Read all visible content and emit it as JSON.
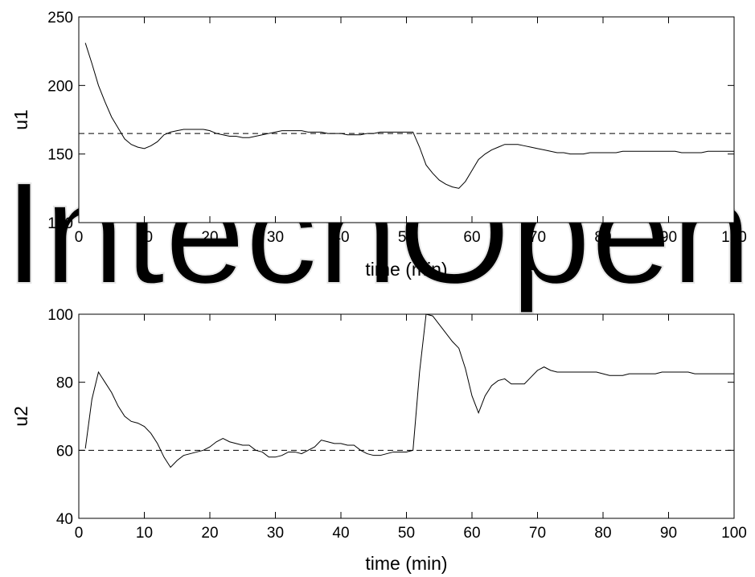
{
  "watermark": {
    "text": "IntechOpen"
  },
  "chart_data": [
    {
      "type": "line",
      "title": "",
      "xlabel": "time (min)",
      "ylabel": "u1",
      "xlim": [
        0,
        100
      ],
      "ylim": [
        100,
        250
      ],
      "xticks": [
        0,
        10,
        20,
        30,
        40,
        50,
        60,
        70,
        80,
        90,
        100
      ],
      "yticks": [
        100,
        150,
        200,
        250
      ],
      "grid": false,
      "series": [
        {
          "style": "solid",
          "color": "#000000",
          "x": [
            1,
            2,
            3,
            4,
            5,
            6,
            7,
            8,
            9,
            10,
            11,
            12,
            13,
            14,
            15,
            16,
            17,
            18,
            19,
            20,
            21,
            22,
            23,
            24,
            25,
            26,
            27,
            28,
            29,
            30,
            31,
            32,
            33,
            34,
            35,
            36,
            37,
            38,
            39,
            40,
            41,
            42,
            43,
            44,
            45,
            46,
            47,
            48,
            49,
            50,
            51,
            52,
            53,
            54,
            55,
            56,
            57,
            58,
            59,
            60,
            61,
            62,
            63,
            64,
            65,
            66,
            67,
            68,
            69,
            70,
            71,
            72,
            73,
            74,
            75,
            76,
            77,
            78,
            79,
            80,
            81,
            82,
            83,
            84,
            85,
            86,
            87,
            88,
            89,
            90,
            91,
            92,
            93,
            94,
            95,
            96,
            97,
            98,
            99,
            100
          ],
          "y": [
            231,
            216,
            200,
            188,
            177,
            169,
            161,
            157,
            155,
            154,
            156,
            159,
            164,
            166,
            167,
            168,
            168,
            168,
            168,
            167,
            165,
            164,
            163,
            163,
            162,
            162,
            163,
            164,
            165,
            166,
            167,
            167,
            167,
            167,
            166,
            166,
            166,
            165,
            165,
            165,
            164,
            164,
            164,
            165,
            165,
            166,
            166,
            166,
            166,
            166,
            166,
            155,
            142,
            136,
            131,
            128,
            126,
            125,
            130,
            138,
            146,
            150,
            153,
            155,
            157,
            157,
            157,
            156,
            155,
            154,
            153,
            152,
            151,
            151,
            150,
            150,
            150,
            151,
            151,
            151,
            151,
            151,
            152,
            152,
            152,
            152,
            152,
            152,
            152,
            152,
            152,
            151,
            151,
            151,
            151,
            152,
            152,
            152,
            152,
            152
          ]
        },
        {
          "style": "dashed",
          "color": "#000000",
          "x": [
            0,
            100
          ],
          "y": [
            165,
            165
          ]
        }
      ]
    },
    {
      "type": "line",
      "title": "",
      "xlabel": "time (min)",
      "ylabel": "u2",
      "xlim": [
        0,
        100
      ],
      "ylim": [
        40,
        100
      ],
      "xticks": [
        0,
        10,
        20,
        30,
        40,
        50,
        60,
        70,
        80,
        90,
        100
      ],
      "yticks": [
        40,
        60,
        80,
        100
      ],
      "grid": false,
      "series": [
        {
          "style": "solid",
          "color": "#000000",
          "x": [
            1,
            2,
            3,
            4,
            5,
            6,
            7,
            8,
            9,
            10,
            11,
            12,
            13,
            14,
            15,
            16,
            17,
            18,
            19,
            20,
            21,
            22,
            23,
            24,
            25,
            26,
            27,
            28,
            29,
            30,
            31,
            32,
            33,
            34,
            35,
            36,
            37,
            38,
            39,
            40,
            41,
            42,
            43,
            44,
            45,
            46,
            47,
            48,
            49,
            50,
            51,
            52,
            53,
            54,
            55,
            56,
            57,
            58,
            59,
            60,
            61,
            62,
            63,
            64,
            65,
            66,
            67,
            68,
            69,
            70,
            71,
            72,
            73,
            74,
            75,
            76,
            77,
            78,
            79,
            80,
            81,
            82,
            83,
            84,
            85,
            86,
            87,
            88,
            89,
            90,
            91,
            92,
            93,
            94,
            95,
            96,
            97,
            98,
            99,
            100
          ],
          "y": [
            60.5,
            75,
            83,
            80,
            77,
            73,
            70,
            68.5,
            68,
            67,
            65,
            62,
            58,
            55,
            57,
            58.5,
            59,
            59.5,
            60,
            61,
            62.5,
            63.5,
            62.5,
            62,
            61.5,
            61.5,
            60,
            59.5,
            58,
            58,
            58.5,
            59.5,
            59.5,
            59,
            60,
            61,
            63,
            62.5,
            62,
            62,
            61.5,
            61.5,
            60,
            59,
            58.5,
            58.5,
            59,
            59.5,
            59.5,
            59.5,
            60,
            83,
            100,
            99.5,
            97,
            94.5,
            92,
            90,
            84,
            76,
            71,
            76,
            79,
            80.5,
            81,
            79.5,
            79.5,
            79.5,
            81.5,
            83.5,
            84.5,
            83.5,
            83,
            83,
            83,
            83,
            83,
            83,
            83,
            82.5,
            82,
            82,
            82,
            82.5,
            82.5,
            82.5,
            82.5,
            82.5,
            83,
            83,
            83,
            83,
            83,
            82.5,
            82.5,
            82.5,
            82.5,
            82.5,
            82.5,
            82.5
          ]
        },
        {
          "style": "dashed",
          "color": "#000000",
          "x": [
            0,
            100
          ],
          "y": [
            60,
            60
          ]
        }
      ]
    }
  ]
}
